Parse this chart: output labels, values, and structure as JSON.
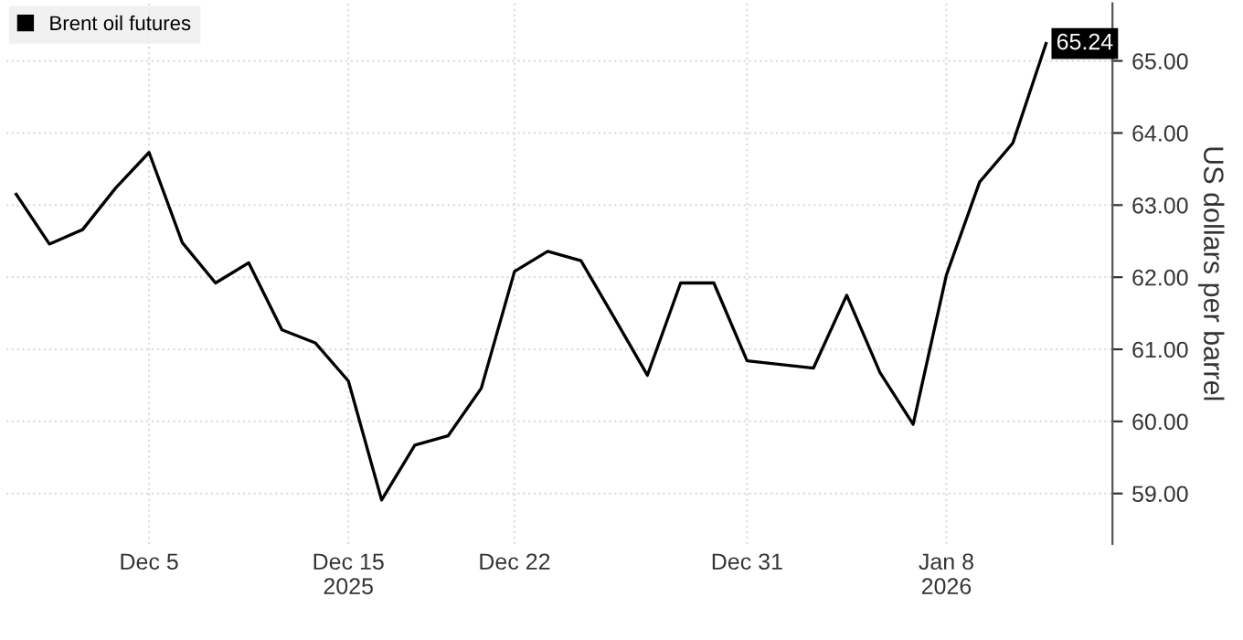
{
  "chart_data": {
    "type": "line",
    "ylabel": "US dollars per barrel",
    "categories": [
      null,
      null,
      null,
      null,
      "Dec 5",
      null,
      null,
      null,
      null,
      null,
      "Dec 15\n2025",
      null,
      null,
      null,
      null,
      "Dec 22",
      null,
      null,
      null,
      null,
      null,
      null,
      "Dec 31",
      null,
      null,
      null,
      null,
      null,
      "Jan 8\n2026",
      null,
      null,
      null
    ],
    "series": [
      {
        "name": "Brent oil futures",
        "color": "#000000",
        "values": [
          63.15,
          62.46,
          62.66,
          63.24,
          63.73,
          62.48,
          61.92,
          62.2,
          61.27,
          61.09,
          60.56,
          58.91,
          59.67,
          59.8,
          60.46,
          62.08,
          62.36,
          62.23,
          61.44,
          60.64,
          61.92,
          61.92,
          60.84,
          60.79,
          60.74,
          61.75,
          60.68,
          59.96,
          62.03,
          63.32,
          63.86,
          65.24
        ],
        "value_labels": [
          null,
          null,
          null,
          null,
          null,
          null,
          null,
          null,
          null,
          null,
          null,
          null,
          null,
          null,
          null,
          null,
          null,
          null,
          null,
          null,
          null,
          null,
          null,
          null,
          null,
          null,
          null,
          null,
          null,
          null,
          null,
          "65.24"
        ]
      }
    ],
    "ylim": [
      58.3,
      65.8
    ],
    "yticks": [
      {
        "value": 59,
        "label": "59.00"
      },
      {
        "value": 60,
        "label": "60.00"
      },
      {
        "value": 61,
        "label": "61.00"
      },
      {
        "value": 62,
        "label": "62.00"
      },
      {
        "value": 63,
        "label": "63.00"
      },
      {
        "value": 64,
        "label": "64.00"
      },
      {
        "value": 65,
        "label": "65.00"
      }
    ],
    "grid": true,
    "legend": "top left",
    "marker": "none",
    "line_style": "solid"
  }
}
